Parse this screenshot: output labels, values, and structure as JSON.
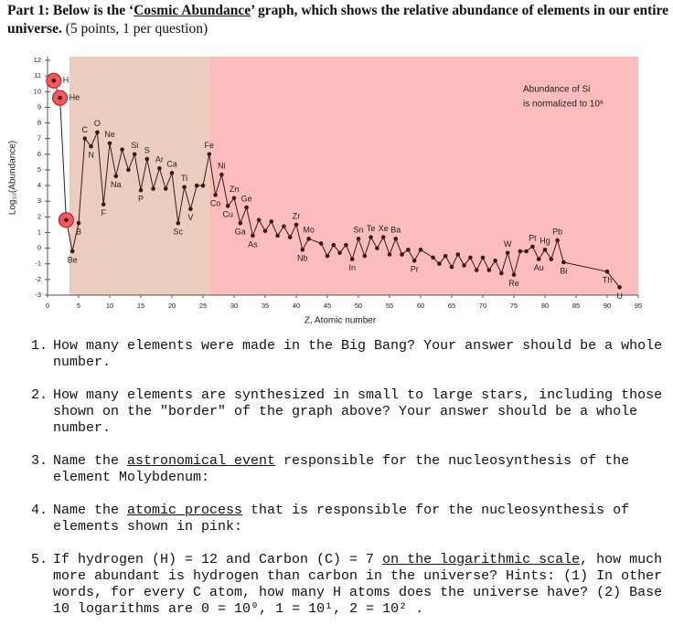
{
  "header": {
    "parts": [
      {
        "text": "Part 1: Below is the ‘",
        "bold": true
      },
      {
        "text": "Cosmic Abundance",
        "bold": true,
        "u": true
      },
      {
        "text": "’ graph, which shows the relative abundance of elements in our entire universe.",
        "bold": true
      },
      {
        "text": " (5 points, 1 per question)",
        "bold": false
      }
    ]
  },
  "chart_data": {
    "type": "line",
    "x_label": "Z, Atomic number",
    "y_label": "Log₁₀(Abundance)",
    "annotation": [
      "Abundance of Si",
      "is normalized to 10⁶"
    ],
    "xlim": [
      0,
      95
    ],
    "xticks": [
      0,
      5,
      10,
      15,
      20,
      25,
      30,
      35,
      40,
      45,
      50,
      55,
      60,
      65,
      70,
      75,
      80,
      85,
      90,
      95
    ],
    "ylim": [
      -3,
      12
    ],
    "yticks": [
      -3,
      -2,
      -1,
      0,
      1,
      2,
      3,
      4,
      5,
      6,
      7,
      8,
      9,
      10,
      11,
      12
    ],
    "regions": [
      {
        "from": 3.5,
        "to": 26,
        "color": "#ecccbc"
      },
      {
        "from": 26,
        "to": 95,
        "color": "#fbbcbd"
      }
    ],
    "highlighted_x": [
      1,
      2,
      3
    ],
    "color": "#3a1c12",
    "x": [
      1,
      2,
      3,
      4,
      5,
      6,
      7,
      8,
      9,
      10,
      11,
      12,
      13,
      14,
      15,
      16,
      17,
      18,
      19,
      20,
      21,
      22,
      23,
      24,
      25,
      26,
      27,
      28,
      29,
      30,
      31,
      32,
      33,
      34,
      35,
      36,
      37,
      38,
      39,
      40,
      41,
      42,
      44,
      45,
      46,
      47,
      48,
      49,
      50,
      51,
      52,
      53,
      54,
      55,
      56,
      57,
      58,
      59,
      60,
      62,
      63,
      64,
      65,
      66,
      67,
      68,
      69,
      70,
      71,
      72,
      73,
      74,
      75,
      76,
      77,
      78,
      79,
      80,
      81,
      82,
      83,
      90,
      92
    ],
    "values": [
      10.7,
      9.6,
      1.8,
      -0.2,
      1.6,
      7.0,
      6.5,
      7.4,
      2.8,
      6.7,
      4.6,
      6.3,
      5.0,
      6.0,
      3.7,
      5.7,
      3.8,
      5.1,
      3.8,
      4.8,
      1.6,
      3.9,
      2.5,
      4.0,
      4.0,
      6.0,
      3.4,
      4.7,
      2.7,
      3.2,
      1.6,
      2.6,
      0.8,
      1.8,
      1.1,
      1.7,
      0.8,
      1.4,
      0.7,
      1.5,
      -0.1,
      0.6,
      0.3,
      -0.5,
      0.2,
      -0.3,
      0.2,
      -0.7,
      0.6,
      -0.5,
      0.7,
      0,
      0.7,
      -0.4,
      0.6,
      -0.4,
      -0.1,
      -0.8,
      -0.1,
      -0.6,
      -1.0,
      -0.5,
      -1.2,
      -0.4,
      -1.1,
      -0.6,
      -1.4,
      -0.6,
      -1.4,
      -0.8,
      -1.6,
      -0.3,
      -1.7,
      -0.2,
      -0.2,
      0.1,
      -0.7,
      -0.1,
      -0.7,
      0.5,
      -0.9,
      -1.5,
      -2.5
    ],
    "point_labels": [
      "H",
      "He",
      null,
      "Be",
      "B",
      "C",
      "N",
      "O",
      "F",
      "Ne",
      "Na",
      null,
      null,
      "Si",
      "P",
      "S",
      null,
      "Ar",
      null,
      "Ca",
      "Sc",
      "Ti",
      "V",
      null,
      null,
      "Fe",
      "Co",
      "Ni",
      "Cu",
      "Zn",
      "Ga",
      "Ge",
      "As",
      null,
      null,
      null,
      null,
      null,
      null,
      "Zr",
      "Nb",
      "Mo",
      null,
      null,
      null,
      null,
      null,
      "In",
      "Sn",
      null,
      "Te",
      null,
      "Xe",
      null,
      "Ba",
      null,
      null,
      "Pr",
      null,
      null,
      null,
      null,
      null,
      null,
      null,
      null,
      null,
      null,
      null,
      null,
      null,
      "W",
      "Re",
      null,
      null,
      "Pt",
      "Au",
      "Hg",
      null,
      "Pb",
      "Bi",
      "Th",
      "U"
    ]
  },
  "questions": [
    {
      "number": "1.",
      "parts": [
        {
          "text": "How many elements were made in the Big Bang? Your answer should be a whole number."
        }
      ]
    },
    {
      "number": "2.",
      "parts": [
        {
          "text": "How many elements are synthesized in small to large stars, including those shown on the \"border\" of the graph above? Your answer should be a whole number."
        }
      ]
    },
    {
      "number": "3.",
      "parts": [
        {
          "text": "Name the "
        },
        {
          "text": "astronomical event",
          "u": true
        },
        {
          "text": " responsible for the nucleosynthesis of the element Molybdenum:"
        }
      ]
    },
    {
      "number": "4.",
      "parts": [
        {
          "text": "Name the "
        },
        {
          "text": "atomic process",
          "u": true
        },
        {
          "text": " that is responsible for the nucleosynthesis of elements shown in pink:"
        }
      ]
    },
    {
      "number": "5.",
      "parts": [
        {
          "text": "If hydrogen (H) = 12 and Carbon (C) = 7 "
        },
        {
          "text": "on the logarithmic scale",
          "u": true
        },
        {
          "text": ", how much more abundant is hydrogen than carbon in the universe? Hints: (1) In other words, for every C atom, how many H atoms does the universe have? (2) Base 10 logarithms are 0 = 10⁰, 1 = 10¹, 2 = 10² ."
        }
      ]
    }
  ]
}
